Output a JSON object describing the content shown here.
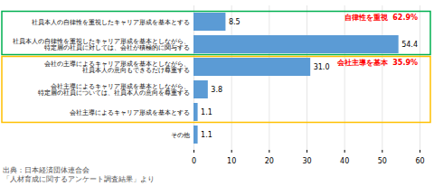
{
  "chart_data": {
    "type": "bar",
    "orientation": "horizontal",
    "categories": [
      "社員本人の自律性を重視したキャリア形成を基本とする",
      "社員本人の自律性を重視したキャリア形成を基本としながら、\n特定層の社員に対しては、会社が積極的に関与する",
      "会社の主導によるキャリア形成を基本としながら、\n社員本人の意向もできるだけ尊重する",
      "会社主導によるキャリア形成を基本としながら、\n特定層の社員については、社員本人の意向を尊重する",
      "会社主導によるキャリア形成を基本とする",
      "その他"
    ],
    "values": [
      8.5,
      54.4,
      31.0,
      3.8,
      1.1,
      1.1
    ],
    "value_labels": [
      "8.5",
      "54.4",
      "31.0",
      "3.8",
      "1.1",
      "1.1"
    ],
    "data_labels": true,
    "color": "#5b9bd5",
    "xlim": [
      0,
      60
    ],
    "xticks": [
      0,
      10,
      20,
      30,
      40,
      50,
      60
    ],
    "grid": true,
    "annotations": [
      {
        "text": "自律性を重視  62.9%",
        "color": "#ff0000",
        "box_color": "#00b050",
        "span": [
          "社員本人の自律性を重視したキャリア形成を基本とする",
          "社員本人の自律性を重視したキャリア形成を基本としながら、\n特定層の社員に対しては、会社が積極的に関与する"
        ]
      },
      {
        "text": "会社主導を基本  35.9%",
        "color": "#ff0000",
        "box_color": "#ffc000",
        "span": [
          "会社の主導によるキャリア形成を基本としながら、\n社員本人の意向もできるだけ尊重する",
          "会社主導によるキャリア形成を基本とする"
        ]
      }
    ],
    "source": [
      "出典：日本経済団体連合会",
      "「人材育成に関するアンケート調査結果」より"
    ]
  }
}
